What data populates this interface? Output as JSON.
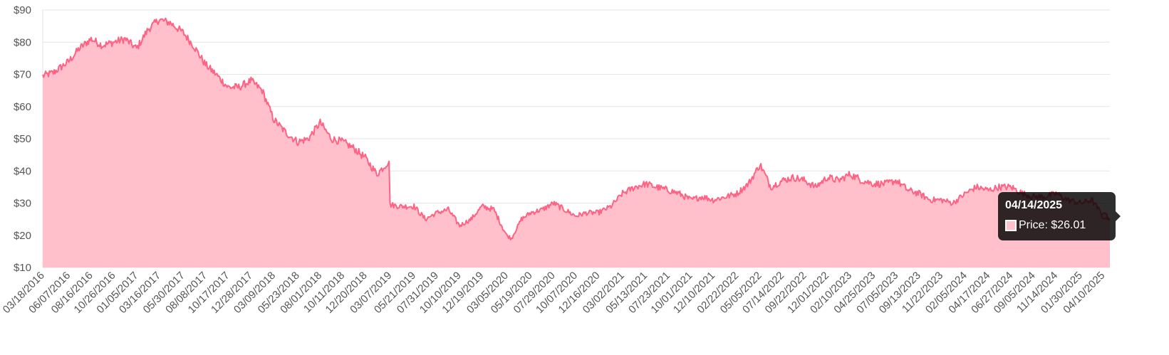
{
  "chart_data": {
    "type": "area",
    "title": "",
    "xlabel": "",
    "ylabel": "",
    "ylim": [
      10,
      90
    ],
    "y_tick_labels": [
      "$10",
      "$20",
      "$30",
      "$40",
      "$50",
      "$60",
      "$70",
      "$80",
      "$90"
    ],
    "y_tick_values": [
      10,
      20,
      30,
      40,
      50,
      60,
      70,
      80,
      90
    ],
    "x_range": [
      "03/18/2016",
      "05/01/2025"
    ],
    "x_tick_labels": [
      "03/18/2016",
      "06/07/2016",
      "08/16/2016",
      "10/26/2016",
      "01/05/2017",
      "03/16/2017",
      "05/30/2017",
      "08/08/2017",
      "10/17/2017",
      "12/28/2017",
      "03/09/2018",
      "05/23/2018",
      "08/01/2018",
      "10/11/2018",
      "12/20/2018",
      "03/07/2019",
      "05/21/2019",
      "07/31/2019",
      "10/10/2019",
      "12/19/2019",
      "03/05/2020",
      "05/19/2020",
      "07/29/2020",
      "10/07/2020",
      "12/16/2020",
      "03/02/2021",
      "05/13/2021",
      "07/23/2021",
      "10/01/2021",
      "12/10/2021",
      "02/22/2022",
      "05/05/2022",
      "07/14/2022",
      "09/22/2022",
      "12/01/2022",
      "02/10/2023",
      "04/25/2023",
      "07/05/2023",
      "09/13/2023",
      "11/22/2023",
      "02/05/2024",
      "04/17/2024",
      "06/27/2024",
      "09/05/2024",
      "11/14/2024",
      "01/30/2025",
      "04/10/2025"
    ],
    "grid": true,
    "legend": "none",
    "colors": {
      "line": "#ff6384",
      "fill": "#ffc0cb"
    },
    "series": [
      {
        "x": [
          "03/18/2016",
          "04/20/2016",
          "06/07/2016",
          "07/10/2016",
          "08/16/2016",
          "09/20/2016",
          "10/26/2016",
          "11/30/2016",
          "01/05/2017",
          "02/10/2017",
          "03/16/2017",
          "04/20/2017",
          "05/30/2017",
          "07/01/2017",
          "08/08/2017",
          "09/10/2017",
          "10/17/2017",
          "11/20/2017",
          "12/28/2017",
          "02/01/2018",
          "03/09/2018",
          "04/15/2018",
          "05/23/2018",
          "06/25/2018",
          "08/01/2018",
          "09/05/2018",
          "10/11/2018",
          "11/15/2018",
          "12/20/2018",
          "01/25/2019",
          "03/04/2019",
          "03/07/2019",
          "04/10/2019",
          "05/21/2019",
          "06/25/2019",
          "07/31/2019",
          "09/05/2019",
          "10/10/2019",
          "11/15/2019",
          "12/19/2019",
          "01/25/2020",
          "03/05/2020",
          "03/20/2020",
          "04/20/2020",
          "05/19/2020",
          "06/25/2020",
          "07/29/2020",
          "09/01/2020",
          "10/07/2020",
          "11/10/2020",
          "12/16/2020",
          "01/25/2021",
          "03/02/2021",
          "04/10/2021",
          "05/13/2021",
          "06/15/2021",
          "07/23/2021",
          "08/25/2021",
          "10/01/2021",
          "11/05/2021",
          "12/10/2021",
          "01/20/2022",
          "02/22/2022",
          "03/30/2022",
          "05/05/2022",
          "06/08/2022",
          "07/14/2022",
          "08/18/2022",
          "09/22/2022",
          "10/25/2022",
          "12/01/2022",
          "01/05/2023",
          "02/10/2023",
          "03/20/2023",
          "04/25/2023",
          "06/01/2023",
          "07/05/2023",
          "08/10/2023",
          "09/13/2023",
          "10/18/2023",
          "11/22/2023",
          "12/28/2023",
          "02/05/2024",
          "03/10/2024",
          "04/17/2024",
          "05/20/2024",
          "06/27/2024",
          "08/01/2024",
          "09/05/2024",
          "10/10/2024",
          "11/14/2024",
          "12/20/2024",
          "01/30/2025",
          "03/05/2025",
          "04/10/2025",
          "04/14/2025",
          "05/01/2025"
        ],
        "values": [
          69.5,
          70.5,
          74,
          78,
          81,
          79,
          80,
          81,
          78,
          84,
          87,
          86,
          83,
          79,
          73,
          70,
          66,
          66,
          68,
          65,
          56,
          52,
          49,
          50,
          55,
          50,
          49,
          47,
          44,
          39,
          43,
          29.5,
          29,
          29,
          25,
          27,
          28,
          23,
          25,
          29,
          28,
          20,
          19,
          25,
          27,
          28,
          30,
          28,
          26,
          27,
          27,
          29,
          33,
          35,
          36,
          35,
          34,
          33,
          31,
          32,
          31,
          32,
          33,
          36,
          42,
          35,
          37,
          38,
          37,
          35,
          38,
          37,
          39,
          37,
          36,
          36,
          37,
          34,
          33,
          31,
          31,
          30,
          33,
          35,
          34,
          35,
          35,
          33,
          32,
          32,
          33,
          31,
          30,
          31,
          26,
          26.01,
          25.2
        ]
      }
    ],
    "tooltip": {
      "title": "04/14/2025",
      "label": "Price: $26.01"
    }
  }
}
